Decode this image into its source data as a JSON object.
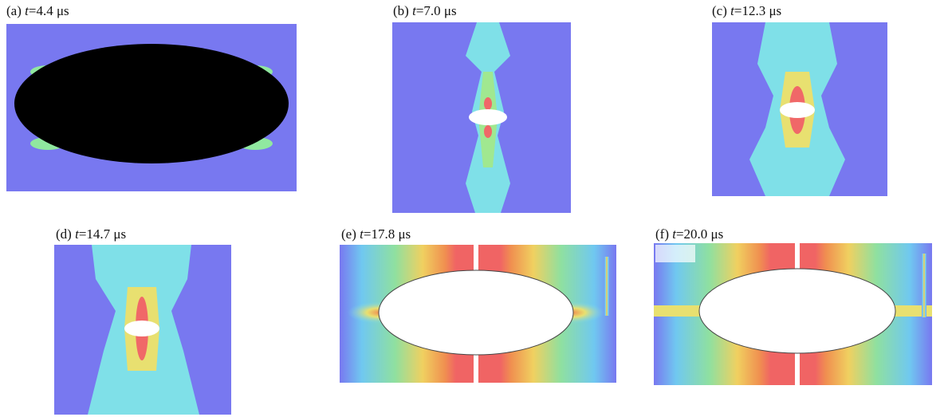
{
  "panels": [
    {
      "label": "(a)",
      "variable": "t",
      "value": "=4.4 μs"
    },
    {
      "label": "(b)",
      "variable": "t",
      "value": "=7.0 μs"
    },
    {
      "label": "(c)",
      "variable": "t",
      "value": "=12.3 μs"
    },
    {
      "label": "(d)",
      "variable": "t",
      "value": "=14.7 μs"
    },
    {
      "label": "(e)",
      "variable": "t",
      "value": "=17.8 μs"
    },
    {
      "label": "(f)",
      "variable": "t",
      "value": "=20.0 μs"
    }
  ]
}
